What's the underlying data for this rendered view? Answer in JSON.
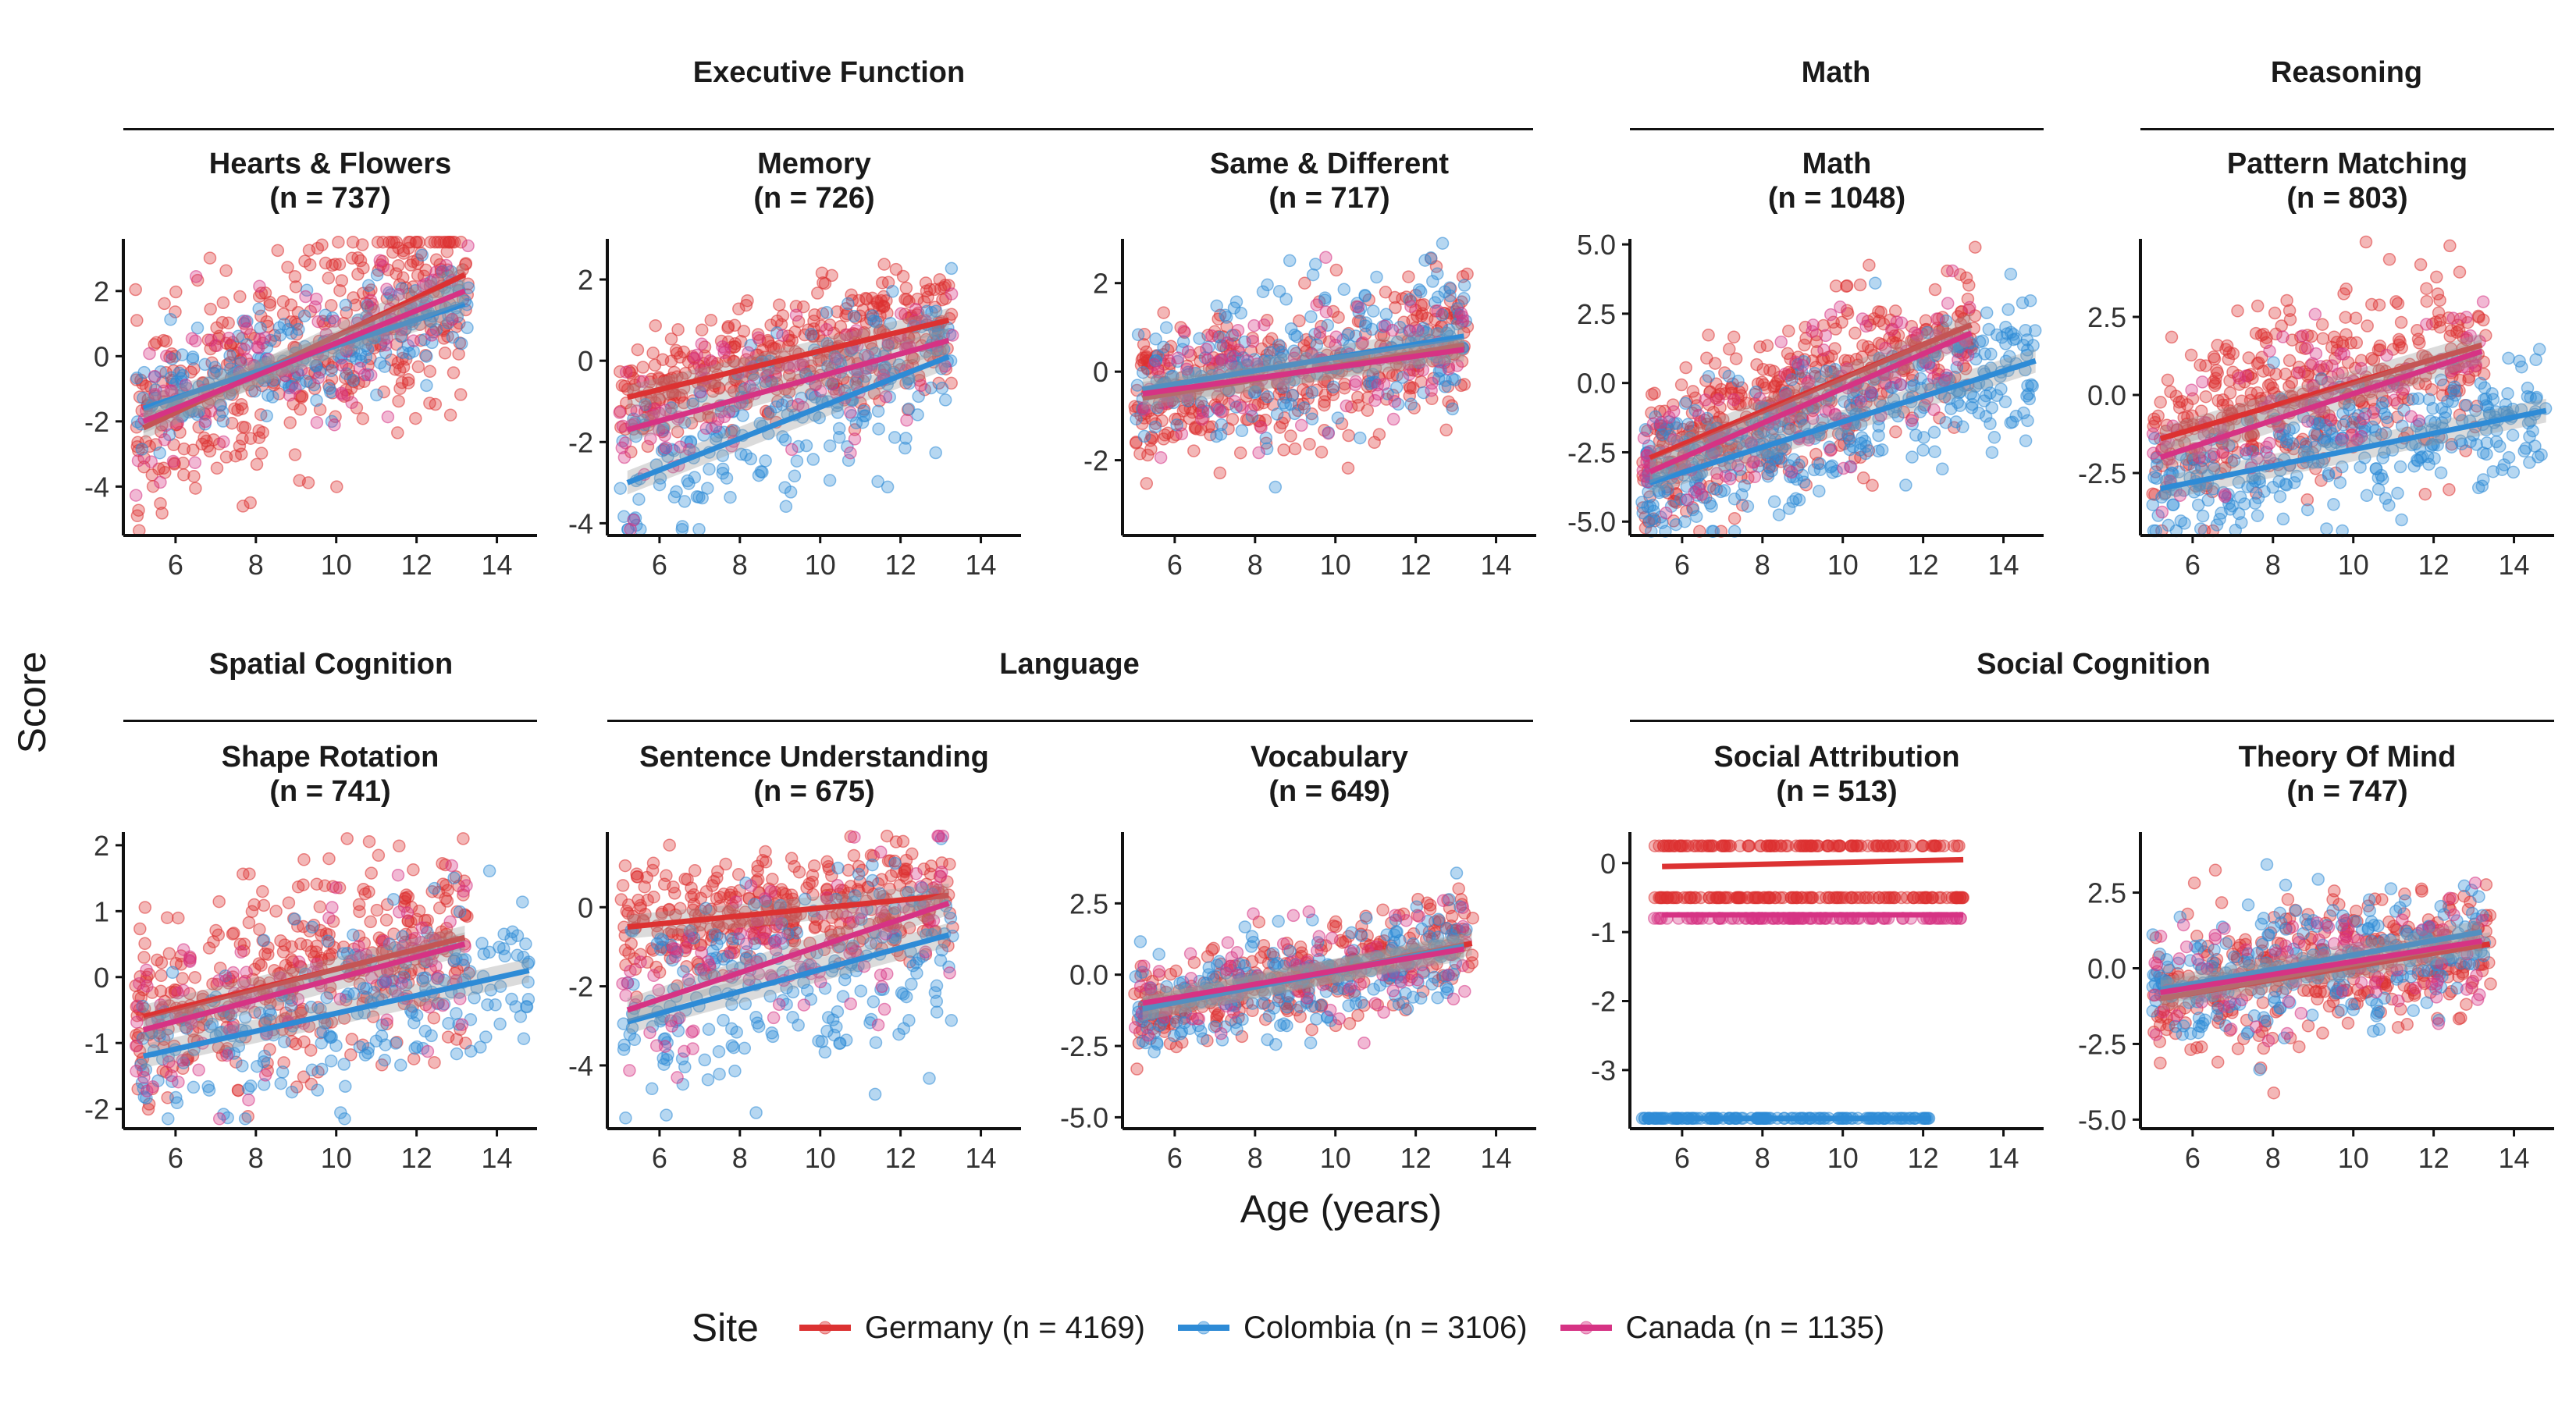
{
  "y_axis_title": "Score",
  "x_axis_title": "Age (years)",
  "groups": [
    {
      "label": "Executive Function"
    },
    {
      "label": "Math"
    },
    {
      "label": "Reasoning"
    },
    {
      "label": "Spatial Cognition"
    },
    {
      "label": "Language"
    },
    {
      "label": "Social Cognition"
    }
  ],
  "legend": {
    "title": "Site",
    "items": [
      {
        "label": "Germany (n = 4169)",
        "color": "#dc3232"
      },
      {
        "label": "Colombia (n = 3106)",
        "color": "#2e8bd6"
      },
      {
        "label": "Canada (n = 1135)",
        "color": "#d63384"
      }
    ]
  },
  "chart_data": [
    {
      "type": "scatter",
      "title": "Hearts & Flowers",
      "n_label": "(n = 737)",
      "xlim": [
        4.7,
        15
      ],
      "ylim": [
        -5.5,
        3.6
      ],
      "xticks": [
        6,
        8,
        10,
        12,
        14
      ],
      "yticks": [
        2,
        0,
        -2,
        -4
      ],
      "series": [
        {
          "name": "Germany",
          "trend": [
            [
              5.2,
              -2.2
            ],
            [
              13.2,
              2.5
            ]
          ],
          "x_range": [
            5,
            13.3
          ],
          "spread": 1.6,
          "count": 420
        },
        {
          "name": "Colombia",
          "trend": [
            [
              5.2,
              -1.6
            ],
            [
              13.2,
              1.6
            ]
          ],
          "x_range": [
            5,
            13.3
          ],
          "spread": 0.8,
          "count": 220
        },
        {
          "name": "Canada",
          "trend": [
            [
              5.2,
              -2.0
            ],
            [
              13.2,
              2.0
            ]
          ],
          "x_range": [
            5,
            13.3
          ],
          "spread": 1.2,
          "count": 100
        }
      ]
    },
    {
      "type": "scatter",
      "title": "Memory",
      "n_label": "(n = 726)",
      "xlim": [
        4.7,
        15
      ],
      "ylim": [
        -4.3,
        3.0
      ],
      "xticks": [
        6,
        8,
        10,
        12,
        14
      ],
      "yticks": [
        2,
        0,
        -2,
        -4
      ],
      "series": [
        {
          "name": "Germany",
          "trend": [
            [
              5.2,
              -0.9
            ],
            [
              13.2,
              1.0
            ]
          ],
          "x_range": [
            5,
            13.3
          ],
          "spread": 0.75,
          "count": 400
        },
        {
          "name": "Colombia",
          "trend": [
            [
              5.2,
              -3.0
            ],
            [
              13.2,
              0.1
            ]
          ],
          "x_range": [
            5,
            13.3
          ],
          "spread": 1.0,
          "count": 220
        },
        {
          "name": "Canada",
          "trend": [
            [
              5.2,
              -1.7
            ],
            [
              13.2,
              0.5
            ]
          ],
          "x_range": [
            5,
            13.3
          ],
          "spread": 0.8,
          "count": 100
        }
      ]
    },
    {
      "type": "scatter",
      "title": "Same & Different",
      "n_label": "(n = 717)",
      "xlim": [
        4.7,
        15
      ],
      "ylim": [
        -3.7,
        3.0
      ],
      "xticks": [
        6,
        8,
        10,
        12,
        14
      ],
      "yticks": [
        2,
        0,
        -2
      ],
      "series": [
        {
          "name": "Germany",
          "trend": [
            [
              5.2,
              -0.6
            ],
            [
              13.2,
              0.6
            ]
          ],
          "x_range": [
            5,
            13.3
          ],
          "spread": 0.8,
          "count": 400
        },
        {
          "name": "Colombia",
          "trend": [
            [
              5.2,
              -0.4
            ],
            [
              13.2,
              0.8
            ]
          ],
          "x_range": [
            5,
            13.3
          ],
          "spread": 0.9,
          "count": 220
        },
        {
          "name": "Canada",
          "trend": [
            [
              5.2,
              -0.5
            ],
            [
              13.2,
              0.5
            ]
          ],
          "x_range": [
            5,
            13.3
          ],
          "spread": 0.8,
          "count": 100
        }
      ]
    },
    {
      "type": "scatter",
      "title": "Math",
      "n_label": "(n = 1048)",
      "xlim": [
        4.7,
        15
      ],
      "ylim": [
        -5.5,
        5.2
      ],
      "xticks": [
        6,
        8,
        10,
        12,
        14
      ],
      "yticks": [
        5.0,
        2.5,
        0.0,
        -2.5,
        -5.0
      ],
      "series": [
        {
          "name": "Germany",
          "trend": [
            [
              5.2,
              -2.7
            ],
            [
              13.2,
              2.1
            ]
          ],
          "x_range": [
            5,
            13.3
          ],
          "spread": 1.3,
          "count": 480
        },
        {
          "name": "Colombia",
          "trend": [
            [
              5.2,
              -3.6
            ],
            [
              14.8,
              0.8
            ]
          ],
          "x_range": [
            5,
            14.8
          ],
          "spread": 1.3,
          "count": 380
        },
        {
          "name": "Canada",
          "trend": [
            [
              5.2,
              -3.2
            ],
            [
              13.2,
              1.8
            ]
          ],
          "x_range": [
            5,
            13.3
          ],
          "spread": 1.2,
          "count": 120
        }
      ]
    },
    {
      "type": "scatter",
      "title": "Pattern Matching",
      "n_label": "(n = 803)",
      "xlim": [
        4.7,
        15
      ],
      "ylim": [
        -4.5,
        5.0
      ],
      "xticks": [
        6,
        8,
        10,
        12,
        14
      ],
      "yticks": [
        2.5,
        0.0,
        -2.5
      ],
      "series": [
        {
          "name": "Germany",
          "trend": [
            [
              5.2,
              -1.4
            ],
            [
              13.2,
              1.6
            ]
          ],
          "x_range": [
            5,
            13.3
          ],
          "spread": 1.4,
          "count": 420
        },
        {
          "name": "Colombia",
          "trend": [
            [
              5.2,
              -3.0
            ],
            [
              14.8,
              -0.5
            ]
          ],
          "x_range": [
            5,
            14.8
          ],
          "spread": 1.0,
          "count": 300
        },
        {
          "name": "Canada",
          "trend": [
            [
              5.2,
              -2.0
            ],
            [
              13.2,
              1.4
            ]
          ],
          "x_range": [
            5,
            13.3
          ],
          "spread": 1.3,
          "count": 100
        }
      ]
    },
    {
      "type": "scatter",
      "title": "Shape Rotation",
      "n_label": "(n = 741)",
      "xlim": [
        4.7,
        15
      ],
      "ylim": [
        -2.3,
        2.2
      ],
      "xticks": [
        6,
        8,
        10,
        12,
        14
      ],
      "yticks": [
        2,
        1,
        0,
        -1,
        -2
      ],
      "series": [
        {
          "name": "Germany",
          "trend": [
            [
              5.2,
              -0.6
            ],
            [
              13.2,
              0.6
            ]
          ],
          "x_range": [
            5,
            13.3
          ],
          "spread": 0.7,
          "count": 420
        },
        {
          "name": "Colombia",
          "trend": [
            [
              5.2,
              -1.2
            ],
            [
              14.8,
              0.1
            ]
          ],
          "x_range": [
            5,
            14.8
          ],
          "spread": 0.6,
          "count": 220
        },
        {
          "name": "Canada",
          "trend": [
            [
              5.2,
              -0.8
            ],
            [
              13.2,
              0.5
            ]
          ],
          "x_range": [
            5,
            13.3
          ],
          "spread": 0.7,
          "count": 100
        }
      ]
    },
    {
      "type": "scatter",
      "title": "Sentence Understanding",
      "n_label": "(n = 675)",
      "xlim": [
        4.7,
        15
      ],
      "ylim": [
        -5.6,
        1.9
      ],
      "xticks": [
        6,
        8,
        10,
        12,
        14
      ],
      "yticks": [
        0,
        -2,
        -4
      ],
      "series": [
        {
          "name": "Germany",
          "trend": [
            [
              5.2,
              -0.5
            ],
            [
              13.2,
              0.3
            ]
          ],
          "x_range": [
            5,
            13.3
          ],
          "spread": 0.7,
          "count": 380
        },
        {
          "name": "Colombia",
          "trend": [
            [
              5.2,
              -2.9
            ],
            [
              13.2,
              -0.7
            ]
          ],
          "x_range": [
            5,
            13.3
          ],
          "spread": 1.2,
          "count": 220
        },
        {
          "name": "Canada",
          "trend": [
            [
              5.2,
              -2.6
            ],
            [
              13.2,
              0.1
            ]
          ],
          "x_range": [
            5,
            13.3
          ],
          "spread": 1.0,
          "count": 100
        }
      ]
    },
    {
      "type": "scatter",
      "title": "Vocabulary",
      "n_label": "(n = 649)",
      "xlim": [
        4.7,
        15
      ],
      "ylim": [
        -5.4,
        5.0
      ],
      "xticks": [
        6,
        8,
        10,
        12,
        14
      ],
      "yticks": [
        2.5,
        0.0,
        -2.5,
        -5.0
      ],
      "series": [
        {
          "name": "Germany",
          "trend": [
            [
              5.2,
              -1.2
            ],
            [
              13.4,
              1.1
            ]
          ],
          "x_range": [
            5,
            13.5
          ],
          "spread": 0.8,
          "count": 340
        },
        {
          "name": "Colombia",
          "trend": [
            [
              5.2,
              -1.2
            ],
            [
              13.2,
              1.0
            ]
          ],
          "x_range": [
            5,
            13.3
          ],
          "spread": 1.0,
          "count": 220
        },
        {
          "name": "Canada",
          "trend": [
            [
              5.2,
              -1.0
            ],
            [
              13.2,
              0.9
            ]
          ],
          "x_range": [
            5,
            13.3
          ],
          "spread": 1.0,
          "count": 90
        }
      ]
    },
    {
      "type": "scatter",
      "title": "Social Attribution",
      "n_label": "(n = 513)",
      "xlim": [
        4.7,
        15
      ],
      "ylim": [
        -3.85,
        0.45
      ],
      "xticks": [
        6,
        8,
        10,
        12,
        14
      ],
      "yticks": [
        0,
        -1,
        -2,
        -3
      ],
      "series": [
        {
          "name": "Germany",
          "trend": [
            [
              5.5,
              -0.05
            ],
            [
              13.0,
              0.05
            ]
          ],
          "x_range": [
            5.3,
            13.0
          ],
          "levels": [
            0.25,
            -0.5
          ],
          "count": 260
        },
        {
          "name": "Colombia",
          "trend": [
            [
              5.0,
              -3.7
            ],
            [
              12.2,
              -3.7
            ]
          ],
          "x_range": [
            5.0,
            12.2
          ],
          "levels": [
            -3.7
          ],
          "count": 150
        },
        {
          "name": "Canada",
          "trend": [
            [
              5.5,
              -0.75
            ],
            [
              13.0,
              -0.75
            ]
          ],
          "x_range": [
            5.3,
            13.0
          ],
          "levels": [
            -0.8
          ],
          "count": 100
        }
      ]
    },
    {
      "type": "scatter",
      "title": "Theory Of Mind",
      "n_label": "(n = 747)",
      "xlim": [
        4.7,
        15
      ],
      "ylim": [
        -5.3,
        4.5
      ],
      "xticks": [
        6,
        8,
        10,
        12,
        14
      ],
      "yticks": [
        2.5,
        0.0,
        -2.5,
        -5.0
      ],
      "series": [
        {
          "name": "Germany",
          "trend": [
            [
              5.2,
              -1.0
            ],
            [
              13.4,
              0.8
            ]
          ],
          "x_range": [
            5,
            13.5
          ],
          "spread": 1.1,
          "count": 380
        },
        {
          "name": "Colombia",
          "trend": [
            [
              5.2,
              -0.7
            ],
            [
              13.2,
              1.2
            ]
          ],
          "x_range": [
            5,
            13.3
          ],
          "spread": 1.1,
          "count": 250
        },
        {
          "name": "Canada",
          "trend": [
            [
              5.2,
              -0.8
            ],
            [
              13.2,
              0.9
            ]
          ],
          "x_range": [
            5,
            13.3
          ],
          "spread": 1.1,
          "count": 100
        }
      ]
    }
  ]
}
